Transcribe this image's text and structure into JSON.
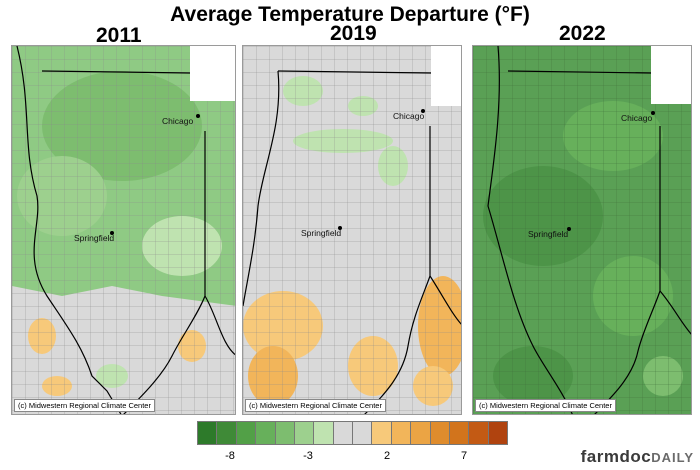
{
  "title": "Average Temperature Departure (°F)",
  "panels": [
    {
      "year": "2011",
      "base_color": "#8fca84",
      "credit": "(c) Midwestern Regional Climate Center"
    },
    {
      "year": "2019",
      "base_color": "#d9d9d9",
      "credit": "(c) Midwestern Regional Climate Center"
    },
    {
      "year": "2022",
      "base_color": "#5aa055",
      "credit": "(c) Midwestern Regional Climate Center"
    }
  ],
  "cities": {
    "chicago": "Chicago",
    "springfield": "Springfield"
  },
  "legend": {
    "colors": [
      "#2d7a2a",
      "#3f8a37",
      "#52a047",
      "#67b05b",
      "#7dbd6f",
      "#9dd08e",
      "#bfe3b0",
      "#d9d9d9",
      "#d9d9d9",
      "#f7c97a",
      "#f2b55a",
      "#eba444",
      "#df8c2d",
      "#d2741c",
      "#c35a14",
      "#b0430f"
    ],
    "tick_labels": [
      "-8",
      "-3",
      "2",
      "7"
    ]
  },
  "brand": {
    "main": "farmdoc",
    "sub": "DAILY"
  }
}
